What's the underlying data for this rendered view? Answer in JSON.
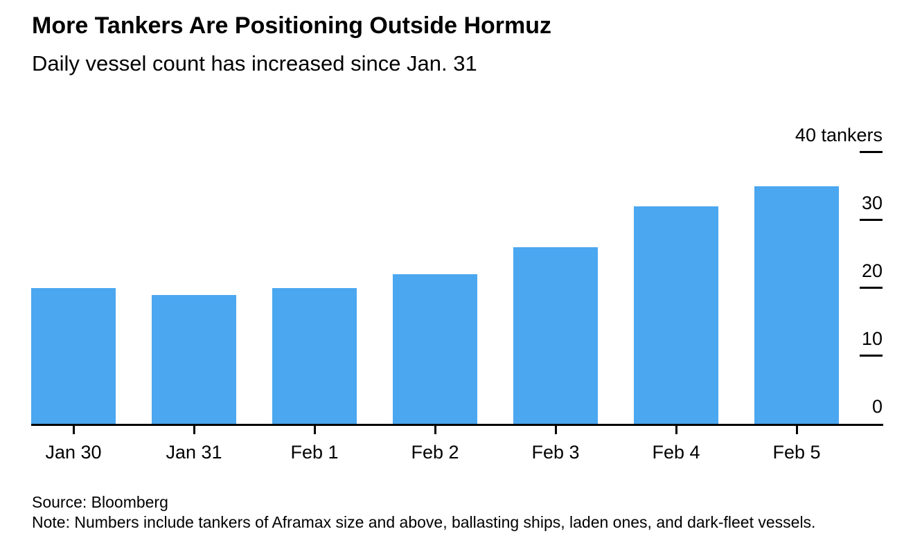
{
  "header": {
    "title": "More Tankers Are Positioning Outside Hormuz",
    "subtitle": "Daily vessel count has increased since Jan. 31"
  },
  "chart_data": {
    "type": "bar",
    "title": "More Tankers Are Positioning Outside Hormuz",
    "subtitle": "Daily vessel count has increased since Jan. 31",
    "categories": [
      "Jan 30",
      "Jan 31",
      "Feb 1",
      "Feb 2",
      "Feb 3",
      "Feb 4",
      "Feb 5"
    ],
    "values": [
      20,
      19,
      20,
      22,
      26,
      32,
      35
    ],
    "xlabel": "",
    "ylabel": "tankers",
    "ylim": [
      0,
      40
    ],
    "yticks": [
      {
        "value": 0,
        "label": "0"
      },
      {
        "value": 10,
        "label": "10"
      },
      {
        "value": 20,
        "label": "20"
      },
      {
        "value": 30,
        "label": "30"
      },
      {
        "value": 40,
        "label": "40 tankers"
      }
    ],
    "grid": false,
    "legend": "none",
    "axis_side": "right",
    "bar_color": "#4BA7F0",
    "axis_color": "#000000",
    "text_color": "#000000",
    "background_color": "#ffffff"
  },
  "footer": {
    "source": "Source: Bloomberg",
    "note": "Note: Numbers include tankers of Aframax size and above, ballasting ships, laden ones, and dark-fleet vessels."
  }
}
